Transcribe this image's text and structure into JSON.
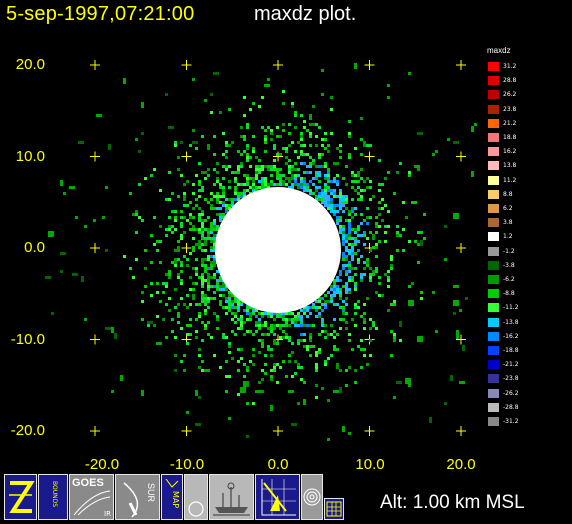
{
  "header": {
    "datetime": "5-sep-1997,07:21:00",
    "product": "maxdz plot."
  },
  "axes": {
    "y_ticks": [
      "20.0",
      "10.0",
      "0.0",
      "-10.0",
      "-20.0"
    ],
    "x_ticks": [
      "-20.0",
      "-10.0",
      "0.0",
      "10.0",
      "20.0"
    ],
    "y_values": [
      20,
      10,
      0,
      -10,
      -20
    ],
    "x_values": [
      -20,
      -10,
      0,
      10,
      20
    ],
    "grid_marker_color": "#ffff00"
  },
  "legend": {
    "title": "maxdz",
    "entries": [
      {
        "label": "31.2",
        "color": "#ff0000"
      },
      {
        "label": "28.8",
        "color": "#dd0000"
      },
      {
        "label": "26.2",
        "color": "#bb0000"
      },
      {
        "label": "23.8",
        "color": "#aa2200"
      },
      {
        "label": "21.2",
        "color": "#ff6600"
      },
      {
        "label": "18.8",
        "color": "#ee7777"
      },
      {
        "label": "16.2",
        "color": "#ff9999"
      },
      {
        "label": "13.8",
        "color": "#ffbbbb"
      },
      {
        "label": "11.2",
        "color": "#ffff99"
      },
      {
        "label": "8.8",
        "color": "#ffcc66"
      },
      {
        "label": "6.2",
        "color": "#dd9944"
      },
      {
        "label": "3.8",
        "color": "#aa6633"
      },
      {
        "label": "1.2",
        "color": "#ffffff"
      },
      {
        "label": "-1.2",
        "color": "#999999"
      },
      {
        "label": "-3.8",
        "color": "#006600"
      },
      {
        "label": "-6.2",
        "color": "#009900"
      },
      {
        "label": "-8.8",
        "color": "#00cc00"
      },
      {
        "label": "-11.2",
        "color": "#33ff33"
      },
      {
        "label": "-13.8",
        "color": "#00ccff"
      },
      {
        "label": "-16.2",
        "color": "#0088ff"
      },
      {
        "label": "-18.8",
        "color": "#0044ff"
      },
      {
        "label": "-21.2",
        "color": "#0000cc"
      },
      {
        "label": "-23.8",
        "color": "#333399"
      },
      {
        "label": "-26.2",
        "color": "#8888bb"
      },
      {
        "label": "-28.8",
        "color": "#bbbbbb"
      },
      {
        "label": "-31.2",
        "color": "#888888"
      }
    ]
  },
  "toolbar": {
    "buttons": [
      {
        "name": "z-button",
        "label": "Z",
        "icon": "z-icon"
      },
      {
        "name": "bounds-button",
        "label": "BOUNDS",
        "icon": "bounds-icon"
      },
      {
        "name": "goes-ir-button",
        "label": "GOES",
        "sublabel": "IR",
        "icon": "satellite-icon"
      },
      {
        "name": "sur-button",
        "label": "SUR",
        "icon": "radar-sweep-icon"
      },
      {
        "name": "map-button",
        "label": "MAP",
        "icon": "map-icon"
      },
      {
        "name": "circle-button",
        "icon": "circle-icon"
      },
      {
        "name": "ship-button",
        "icon": "ship-icon"
      },
      {
        "name": "grid-plot-button",
        "icon": "grid-plot-icon"
      },
      {
        "name": "rings-button",
        "icon": "rings-icon"
      },
      {
        "name": "table-button",
        "icon": "table-icon"
      }
    ]
  },
  "status": {
    "altitude": "Alt: 1.00 km MSL"
  },
  "chart_data": {
    "type": "heatmap",
    "x_range": [
      -20,
      20
    ],
    "y_range": [
      -20,
      20
    ],
    "colorbar_variable": "maxdz",
    "colorbar_range": [
      -31.2,
      31.2
    ]
  }
}
